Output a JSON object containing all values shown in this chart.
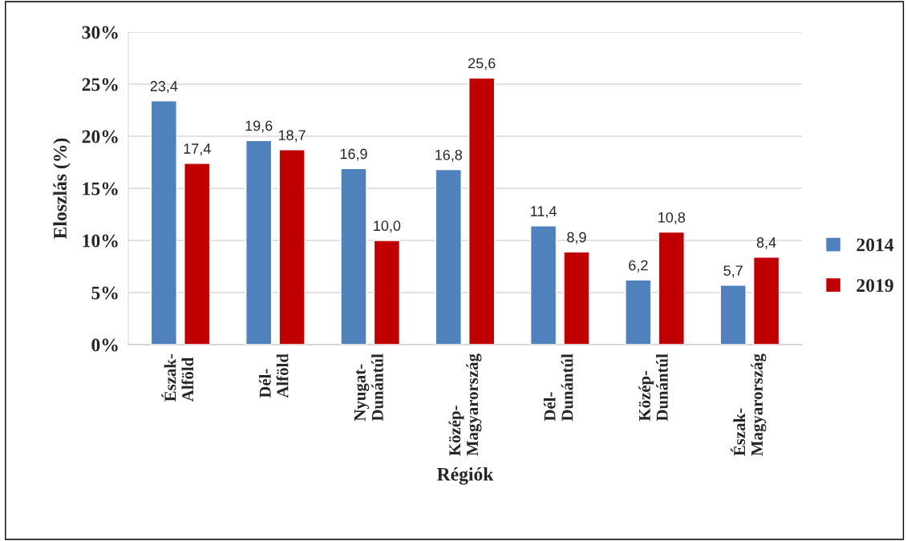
{
  "chart_data": {
    "type": "bar",
    "xlabel": "Régiók",
    "ylabel": "Eloszlás (%)",
    "categories": [
      "Észak-\nAlföld",
      "Dél-\nAlföld",
      "Nyugat-\nDunántúl",
      "Közép-\nMagyarország",
      "Dél-\nDunántúl",
      "Közép-\nDunántúl",
      "Észak-\nMagyarország"
    ],
    "series": [
      {
        "name": "2014",
        "color": "#4f81bd",
        "values": [
          23.4,
          19.6,
          16.9,
          16.8,
          11.4,
          6.2,
          5.7
        ],
        "value_labels": [
          "23,4",
          "19,6",
          "16,9",
          "16,8",
          "11,4",
          "6,2",
          "5,7"
        ]
      },
      {
        "name": "2019",
        "color": "#c00000",
        "values": [
          17.4,
          18.7,
          10.0,
          25.6,
          8.9,
          10.8,
          8.4
        ],
        "value_labels": [
          "17,4",
          "18,7",
          "10,0",
          "25,6",
          "8,9",
          "10,8",
          "8,4"
        ]
      }
    ],
    "ylim": [
      0,
      30
    ],
    "yticks": [
      {
        "value": 0,
        "label": "0%"
      },
      {
        "value": 5,
        "label": "5%"
      },
      {
        "value": 10,
        "label": "10%"
      },
      {
        "value": 15,
        "label": "15%"
      },
      {
        "value": 20,
        "label": "20%"
      },
      {
        "value": 25,
        "label": "25%"
      },
      {
        "value": 30,
        "label": "30%"
      }
    ],
    "grid": "y",
    "legend": "right"
  }
}
